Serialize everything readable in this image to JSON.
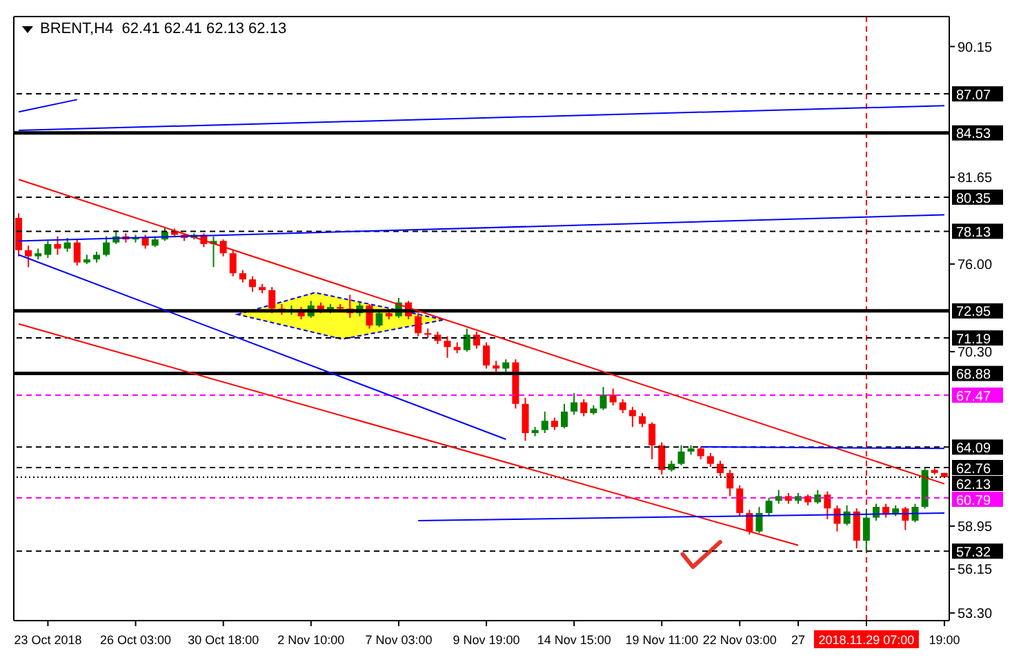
{
  "chart_data": {
    "type": "candlestick",
    "title": "BRENT,H4  62.41 62.41 62.13 62.13",
    "categories": [
      null,
      null,
      null,
      "23 Oct 2018",
      null,
      null,
      null,
      null,
      null,
      null,
      null,
      null,
      "26 Oct 03:00",
      null,
      null,
      null,
      null,
      null,
      null,
      null,
      null,
      "30 Oct 18:00",
      null,
      null,
      null,
      null,
      null,
      null,
      null,
      null,
      "2 Nov 10:00",
      null,
      null,
      null,
      null,
      null,
      null,
      null,
      null,
      "7 Nov 03:00",
      null,
      null,
      null,
      null,
      null,
      null,
      null,
      null,
      "9 Nov 19:00",
      null,
      null,
      null,
      null,
      null,
      null,
      null,
      null,
      "14 Nov 15:00",
      null,
      null,
      null,
      null,
      null,
      null,
      null,
      null,
      "19 Nov 11:00",
      null,
      null,
      null,
      null,
      null,
      null,
      null,
      "22 Nov 03:00",
      null,
      null,
      null,
      null,
      null,
      "27",
      null,
      null,
      null,
      null,
      null,
      null,
      "2018.11.29 07:00",
      null,
      null,
      null,
      null,
      null,
      null,
      null,
      "19:00"
    ],
    "ohlc": [
      [
        79.0,
        79.3,
        76.5,
        76.9
      ],
      [
        76.9,
        77.2,
        75.8,
        76.5
      ],
      [
        76.5,
        77.0,
        76.3,
        76.7
      ],
      [
        76.6,
        77.5,
        76.4,
        77.3
      ],
      [
        77.3,
        77.8,
        76.6,
        77.0
      ],
      [
        77.0,
        77.7,
        76.8,
        77.4
      ],
      [
        77.4,
        77.6,
        75.9,
        76.1
      ],
      [
        76.1,
        76.6,
        76.0,
        76.3
      ],
      [
        76.3,
        76.8,
        76.1,
        76.6
      ],
      [
        76.6,
        77.8,
        76.5,
        77.4
      ],
      [
        77.4,
        78.2,
        77.3,
        77.8
      ],
      [
        77.8,
        78.0,
        77.4,
        77.6
      ],
      [
        77.6,
        77.9,
        77.4,
        77.7
      ],
      [
        77.7,
        77.9,
        77.0,
        77.2
      ],
      [
        77.2,
        77.8,
        77.1,
        77.6
      ],
      [
        77.6,
        78.4,
        77.5,
        78.1
      ],
      [
        78.1,
        78.3,
        77.8,
        77.9
      ],
      [
        77.9,
        78.0,
        77.5,
        77.7
      ],
      [
        77.7,
        78.0,
        77.6,
        77.9
      ],
      [
        77.9,
        78.0,
        77.1,
        77.3
      ],
      [
        77.3,
        77.8,
        75.8,
        77.5
      ],
      [
        77.5,
        77.6,
        76.5,
        76.7
      ],
      [
        76.7,
        76.9,
        75.2,
        75.4
      ],
      [
        75.4,
        75.6,
        74.8,
        75.0
      ],
      [
        75.0,
        75.2,
        74.2,
        74.5
      ],
      [
        74.5,
        74.7,
        74.1,
        74.3
      ],
      [
        74.3,
        74.5,
        72.8,
        73.1
      ],
      [
        73.1,
        73.4,
        72.7,
        72.9
      ],
      [
        72.9,
        73.3,
        72.7,
        73.0
      ],
      [
        73.0,
        73.2,
        72.4,
        72.6
      ],
      [
        72.6,
        73.6,
        72.5,
        73.3
      ],
      [
        73.3,
        73.5,
        72.8,
        73.0
      ],
      [
        73.0,
        73.4,
        72.8,
        73.2
      ],
      [
        73.2,
        73.4,
        72.9,
        73.1
      ],
      [
        73.1,
        74.0,
        72.5,
        72.8
      ],
      [
        72.8,
        73.5,
        72.6,
        73.3
      ],
      [
        73.3,
        73.4,
        71.8,
        72.0
      ],
      [
        72.0,
        73.0,
        71.9,
        72.8
      ],
      [
        72.8,
        73.0,
        72.4,
        72.6
      ],
      [
        72.6,
        73.8,
        72.5,
        73.5
      ],
      [
        73.5,
        73.6,
        72.4,
        72.6
      ],
      [
        72.6,
        72.8,
        71.3,
        71.5
      ],
      [
        71.5,
        71.8,
        71.2,
        71.4
      ],
      [
        71.4,
        71.6,
        70.8,
        71.0
      ],
      [
        71.0,
        71.3,
        69.9,
        70.6
      ],
      [
        70.6,
        70.9,
        70.2,
        70.4
      ],
      [
        70.4,
        71.8,
        70.3,
        71.4
      ],
      [
        71.4,
        71.6,
        70.5,
        70.7
      ],
      [
        70.7,
        70.9,
        69.2,
        69.4
      ],
      [
        69.4,
        69.7,
        69.0,
        69.2
      ],
      [
        69.2,
        69.8,
        69.0,
        69.6
      ],
      [
        69.6,
        69.8,
        66.6,
        66.9
      ],
      [
        66.9,
        67.3,
        64.5,
        65.0
      ],
      [
        65.0,
        65.4,
        64.8,
        65.2
      ],
      [
        65.2,
        66.4,
        65.0,
        65.8
      ],
      [
        65.8,
        66.0,
        65.2,
        65.4
      ],
      [
        65.4,
        66.9,
        65.3,
        66.4
      ],
      [
        66.4,
        67.6,
        66.2,
        67.0
      ],
      [
        67.0,
        67.2,
        66.1,
        66.3
      ],
      [
        66.3,
        66.8,
        66.2,
        66.6
      ],
      [
        66.6,
        68.0,
        66.5,
        67.5
      ],
      [
        67.5,
        67.9,
        66.8,
        67.0
      ],
      [
        67.0,
        67.2,
        66.3,
        66.5
      ],
      [
        66.5,
        66.7,
        65.4,
        66.1
      ],
      [
        66.1,
        66.3,
        65.4,
        65.6
      ],
      [
        65.6,
        65.7,
        63.3,
        64.2
      ],
      [
        64.2,
        64.4,
        62.3,
        62.6
      ],
      [
        62.6,
        63.2,
        62.5,
        63.0
      ],
      [
        63.0,
        64.2,
        62.9,
        63.8
      ],
      [
        63.8,
        64.2,
        63.6,
        64.0
      ],
      [
        64.0,
        64.1,
        63.3,
        63.5
      ],
      [
        63.5,
        63.7,
        62.8,
        63.0
      ],
      [
        63.0,
        63.2,
        62.2,
        62.4
      ],
      [
        62.4,
        62.6,
        60.9,
        61.4
      ],
      [
        61.4,
        61.6,
        59.6,
        59.8
      ],
      [
        59.8,
        60.0,
        58.4,
        58.6
      ],
      [
        58.6,
        60.2,
        58.5,
        59.8
      ],
      [
        59.8,
        60.8,
        59.6,
        60.6
      ],
      [
        60.6,
        61.3,
        60.4,
        60.9
      ],
      [
        60.9,
        61.1,
        60.4,
        60.6
      ],
      [
        60.6,
        61.1,
        60.4,
        60.9
      ],
      [
        60.9,
        61.0,
        60.3,
        60.5
      ],
      [
        60.5,
        61.3,
        60.4,
        61.0
      ],
      [
        61.0,
        61.2,
        59.4,
        60.1
      ],
      [
        60.1,
        60.3,
        58.6,
        59.1
      ],
      [
        59.1,
        60.3,
        59.0,
        59.9
      ],
      [
        59.9,
        60.1,
        57.5,
        58.0
      ],
      [
        58.0,
        60.0,
        57.3,
        59.5
      ],
      [
        59.5,
        60.4,
        59.3,
        60.2
      ],
      [
        60.2,
        60.4,
        59.5,
        59.7
      ],
      [
        59.7,
        60.3,
        59.6,
        60.1
      ],
      [
        60.1,
        60.2,
        58.7,
        59.3
      ],
      [
        59.3,
        60.4,
        59.2,
        60.2
      ],
      [
        60.2,
        62.8,
        60.1,
        62.6
      ],
      [
        62.6,
        62.7,
        62.3,
        62.41
      ],
      [
        62.41,
        62.41,
        62.13,
        62.13
      ]
    ],
    "colors": [
      "#ff0000",
      "#ff0000",
      "#008000",
      "#008000",
      "#ff0000",
      "#008000",
      "#ff0000",
      "#008000",
      "#008000",
      "#008000",
      "#008000",
      "#ff0000",
      "#008000",
      "#ff0000",
      "#008000",
      "#008000",
      "#ff0000",
      "#ff0000",
      "#008000",
      "#ff0000",
      "#008000",
      "#ff0000",
      "#ff0000",
      "#ff0000",
      "#ff0000",
      "#ff0000",
      "#ff0000",
      "#ff0000",
      "#008000",
      "#ff0000",
      "#008000",
      "#ff0000",
      "#008000",
      "#ff0000",
      "#ff0000",
      "#008000",
      "#ff0000",
      "#008000",
      "#ff0000",
      "#008000",
      "#ff0000",
      "#ff0000",
      "#ff0000",
      "#ff0000",
      "#ff0000",
      "#ff0000",
      "#008000",
      "#ff0000",
      "#ff0000",
      "#ff0000",
      "#008000",
      "#ff0000",
      "#ff0000",
      "#008000",
      "#008000",
      "#ff0000",
      "#008000",
      "#008000",
      "#ff0000",
      "#008000",
      "#008000",
      "#ff0000",
      "#ff0000",
      "#ff0000",
      "#ff0000",
      "#ff0000",
      "#ff0000",
      "#008000",
      "#008000",
      "#008000",
      "#ff0000",
      "#ff0000",
      "#ff0000",
      "#ff0000",
      "#ff0000",
      "#ff0000",
      "#008000",
      "#008000",
      "#008000",
      "#ff0000",
      "#008000",
      "#ff0000",
      "#008000",
      "#ff0000",
      "#ff0000",
      "#008000",
      "#ff0000",
      "#008000",
      "#008000",
      "#ff0000",
      "#008000",
      "#ff0000",
      "#008000",
      "#008000",
      "#ff0000",
      "#ff0000"
    ],
    "series": [
      {
        "type": "line",
        "color": "#ff0000",
        "values": [
          81.5,
          null,
          null,
          null,
          null,
          null,
          null,
          null,
          null,
          null,
          null,
          null,
          null,
          null,
          null,
          null,
          null,
          null,
          null,
          null,
          null,
          null,
          null,
          null,
          null,
          null,
          null,
          null,
          null,
          null,
          null,
          null,
          null,
          null,
          null,
          null,
          null,
          null,
          null,
          null,
          null,
          null,
          null,
          null,
          null,
          null,
          null,
          null,
          null,
          null,
          null,
          null,
          null,
          null,
          null,
          null,
          null,
          null,
          null,
          null,
          null,
          null,
          null,
          null,
          null,
          null,
          null,
          null,
          null,
          null,
          null,
          null,
          null,
          null,
          null,
          null,
          null,
          null,
          null,
          null,
          null,
          null,
          null,
          null,
          null,
          null,
          null,
          null,
          null,
          null,
          null,
          null,
          null,
          null,
          null,
          61.7
        ]
      },
      {
        "type": "line",
        "color": "#ff0000",
        "values": [
          72.1,
          null,
          null,
          null,
          null,
          null,
          null,
          null,
          null,
          null,
          null,
          null,
          null,
          null,
          null,
          null,
          null,
          null,
          null,
          null,
          null,
          null,
          null,
          null,
          null,
          null,
          null,
          null,
          null,
          null,
          null,
          null,
          null,
          null,
          null,
          null,
          null,
          null,
          null,
          null,
          null,
          null,
          null,
          null,
          null,
          null,
          null,
          null,
          null,
          null,
          null,
          null,
          null,
          null,
          null,
          null,
          null,
          null,
          null,
          null,
          null,
          null,
          null,
          null,
          null,
          null,
          null,
          null,
          null,
          null,
          null,
          null,
          null,
          null,
          null,
          null,
          null,
          null,
          null,
          null,
          57.7,
          null,
          null,
          null,
          null,
          null,
          null,
          null,
          null,
          null,
          null,
          null,
          null,
          null,
          null,
          null
        ]
      },
      {
        "type": "line",
        "color": "#0000ff",
        "values": [
          84.7,
          null,
          null,
          null,
          null,
          null,
          null,
          null,
          null,
          null,
          null,
          null,
          null,
          null,
          null,
          null,
          null,
          null,
          null,
          null,
          null,
          null,
          null,
          null,
          null,
          null,
          null,
          null,
          null,
          null,
          null,
          null,
          null,
          null,
          null,
          null,
          null,
          null,
          null,
          null,
          null,
          null,
          null,
          null,
          null,
          null,
          null,
          null,
          null,
          null,
          null,
          null,
          null,
          null,
          null,
          null,
          null,
          null,
          null,
          null,
          null,
          null,
          null,
          null,
          null,
          null,
          null,
          null,
          null,
          null,
          null,
          null,
          null,
          null,
          null,
          null,
          null,
          null,
          null,
          null,
          null,
          null,
          null,
          null,
          null,
          null,
          null,
          null,
          null,
          null,
          null,
          null,
          null,
          null,
          null,
          86.3
        ]
      },
      {
        "type": "line",
        "color": "#0000ff",
        "values": [
          85.9,
          null,
          null,
          null,
          null,
          null,
          86.7,
          null,
          null,
          null,
          null,
          null,
          null,
          null,
          null,
          null,
          null,
          null,
          null,
          null,
          null,
          null,
          null,
          null,
          null,
          null,
          null,
          null,
          null,
          null,
          null,
          null,
          null,
          null,
          null,
          null,
          null,
          null,
          null,
          null,
          null,
          null,
          null,
          null,
          null,
          null,
          null,
          null,
          null,
          null,
          null,
          null,
          null,
          null,
          null,
          null,
          null,
          null,
          null,
          null,
          null,
          null,
          null,
          null,
          null,
          null,
          null,
          null,
          null,
          null,
          null,
          null,
          null,
          null,
          null,
          null,
          null,
          null,
          null,
          null,
          null,
          null,
          null,
          null,
          null,
          null,
          null,
          null,
          null,
          null,
          null,
          null,
          null,
          null,
          null,
          null
        ]
      },
      {
        "type": "line",
        "color": "#0000ff",
        "values": [
          77.5,
          null,
          null,
          null,
          null,
          null,
          null,
          null,
          null,
          null,
          null,
          null,
          null,
          null,
          null,
          null,
          null,
          null,
          null,
          null,
          null,
          null,
          null,
          null,
          null,
          null,
          null,
          null,
          null,
          null,
          null,
          null,
          null,
          null,
          null,
          null,
          null,
          null,
          null,
          null,
          null,
          null,
          null,
          null,
          null,
          null,
          null,
          null,
          null,
          null,
          null,
          null,
          null,
          null,
          null,
          null,
          null,
          null,
          null,
          null,
          null,
          null,
          null,
          null,
          null,
          null,
          null,
          null,
          null,
          null,
          null,
          null,
          null,
          null,
          null,
          null,
          null,
          null,
          null,
          null,
          null,
          null,
          null,
          null,
          null,
          null,
          null,
          null,
          null,
          null,
          null,
          null,
          null,
          null,
          null,
          79.2
        ]
      },
      {
        "type": "line",
        "color": "#0000ff",
        "values": [
          76.6,
          null,
          null,
          null,
          null,
          null,
          null,
          null,
          null,
          null,
          null,
          null,
          null,
          null,
          null,
          null,
          null,
          null,
          null,
          null,
          null,
          null,
          null,
          null,
          null,
          null,
          null,
          null,
          null,
          null,
          null,
          null,
          null,
          null,
          null,
          null,
          null,
          null,
          null,
          null,
          null,
          null,
          null,
          null,
          null,
          null,
          null,
          null,
          null,
          null,
          64.6,
          null,
          null,
          null,
          null,
          null,
          null,
          null,
          null,
          null,
          null,
          null,
          null,
          null,
          null,
          null,
          null,
          null,
          null,
          null,
          null,
          null,
          null,
          null,
          null,
          null,
          null,
          null,
          null,
          null,
          null,
          null,
          null,
          null,
          null,
          null,
          null,
          null,
          null,
          null,
          null,
          null,
          null,
          null,
          null,
          null
        ]
      },
      {
        "type": "line",
        "color": "#0000ff",
        "values": [
          null,
          null,
          null,
          null,
          null,
          null,
          null,
          null,
          null,
          null,
          null,
          null,
          null,
          null,
          null,
          null,
          null,
          null,
          null,
          null,
          null,
          null,
          null,
          null,
          null,
          null,
          null,
          null,
          null,
          null,
          null,
          null,
          null,
          null,
          null,
          null,
          null,
          null,
          null,
          null,
          null,
          59.3,
          null,
          null,
          null,
          null,
          null,
          null,
          null,
          null,
          null,
          null,
          null,
          null,
          null,
          null,
          null,
          null,
          null,
          null,
          null,
          null,
          null,
          null,
          null,
          null,
          null,
          null,
          null,
          null,
          null,
          null,
          null,
          null,
          null,
          null,
          null,
          null,
          null,
          null,
          null,
          null,
          null,
          null,
          null,
          null,
          null,
          null,
          null,
          null,
          null,
          null,
          null,
          null,
          null,
          59.8
        ]
      },
      {
        "type": "line",
        "color": "#0000ff",
        "values": [
          null,
          null,
          null,
          null,
          null,
          null,
          null,
          null,
          null,
          null,
          null,
          null,
          null,
          null,
          null,
          null,
          null,
          null,
          null,
          null,
          null,
          null,
          null,
          null,
          null,
          null,
          null,
          null,
          null,
          null,
          null,
          null,
          null,
          null,
          null,
          null,
          null,
          null,
          null,
          null,
          null,
          null,
          null,
          null,
          null,
          null,
          null,
          null,
          null,
          null,
          null,
          null,
          null,
          null,
          null,
          null,
          null,
          null,
          null,
          null,
          null,
          null,
          null,
          null,
          null,
          null,
          null,
          null,
          null,
          null,
          64.1,
          null,
          null,
          null,
          null,
          null,
          null,
          null,
          null,
          null,
          null,
          null,
          null,
          null,
          null,
          null,
          null,
          null,
          null,
          null,
          null,
          null,
          null,
          null,
          null,
          64.0
        ]
      }
    ],
    "ylim": [
      52.8,
      92.1
    ],
    "yticks": [
      {
        "value": 53.3,
        "label": "53.30"
      },
      56.15,
      58.95,
      {
        "value": 70.3,
        "label": "70.30"
      },
      {
        "value": 76,
        "label": "76.00"
      },
      81.65,
      90.15
    ],
    "ref_lines": [
      {
        "axis": "y",
        "value": 87.07,
        "label": "87.07",
        "color": "#000000",
        "line_style": "dashed"
      },
      {
        "axis": "y",
        "value": 84.53,
        "label": "84.53",
        "color": "#000000",
        "line_style": "solid"
      },
      {
        "axis": "y",
        "value": 80.35,
        "label": "80.35",
        "color": "#000000",
        "line_style": "dashed"
      },
      {
        "axis": "y",
        "value": 78.13,
        "label": "78.13",
        "color": "#000000",
        "line_style": "dashed"
      },
      {
        "axis": "y",
        "value": 72.95,
        "label": "72.95",
        "color": "#000000",
        "line_style": "solid"
      },
      {
        "axis": "y",
        "value": 71.19,
        "label": "71.19",
        "color": "#000000",
        "line_style": "dashed"
      },
      {
        "axis": "y",
        "value": 68.88,
        "label": "68.88",
        "color": "#000000",
        "line_style": "solid"
      },
      {
        "axis": "y",
        "value": 67.47,
        "label": "67.47",
        "color": "#ff00ff",
        "line_style": "dashed"
      },
      {
        "axis": "y",
        "value": 64.09,
        "label": "64.09",
        "color": "#000000",
        "line_style": "dashed"
      },
      {
        "axis": "y",
        "value": 62.76,
        "label": "62.76",
        "color": "#000000",
        "line_style": "dashed"
      },
      {
        "axis": "y",
        "value": 62.13,
        "label": "62.13",
        "color": "#000000",
        "line_style": "dotted"
      },
      {
        "axis": "y",
        "value": 60.79,
        "label": "60.79",
        "color": "#ff00ff",
        "line_style": "dashed"
      },
      {
        "axis": "y",
        "value": 57.32,
        "label": "57.32",
        "color": "#000000",
        "line_style": "dashed"
      },
      {
        "axis": "x",
        "value": "2018.11.29 07:00",
        "color": "#ff0000",
        "line_style": "dashed"
      }
    ]
  }
}
